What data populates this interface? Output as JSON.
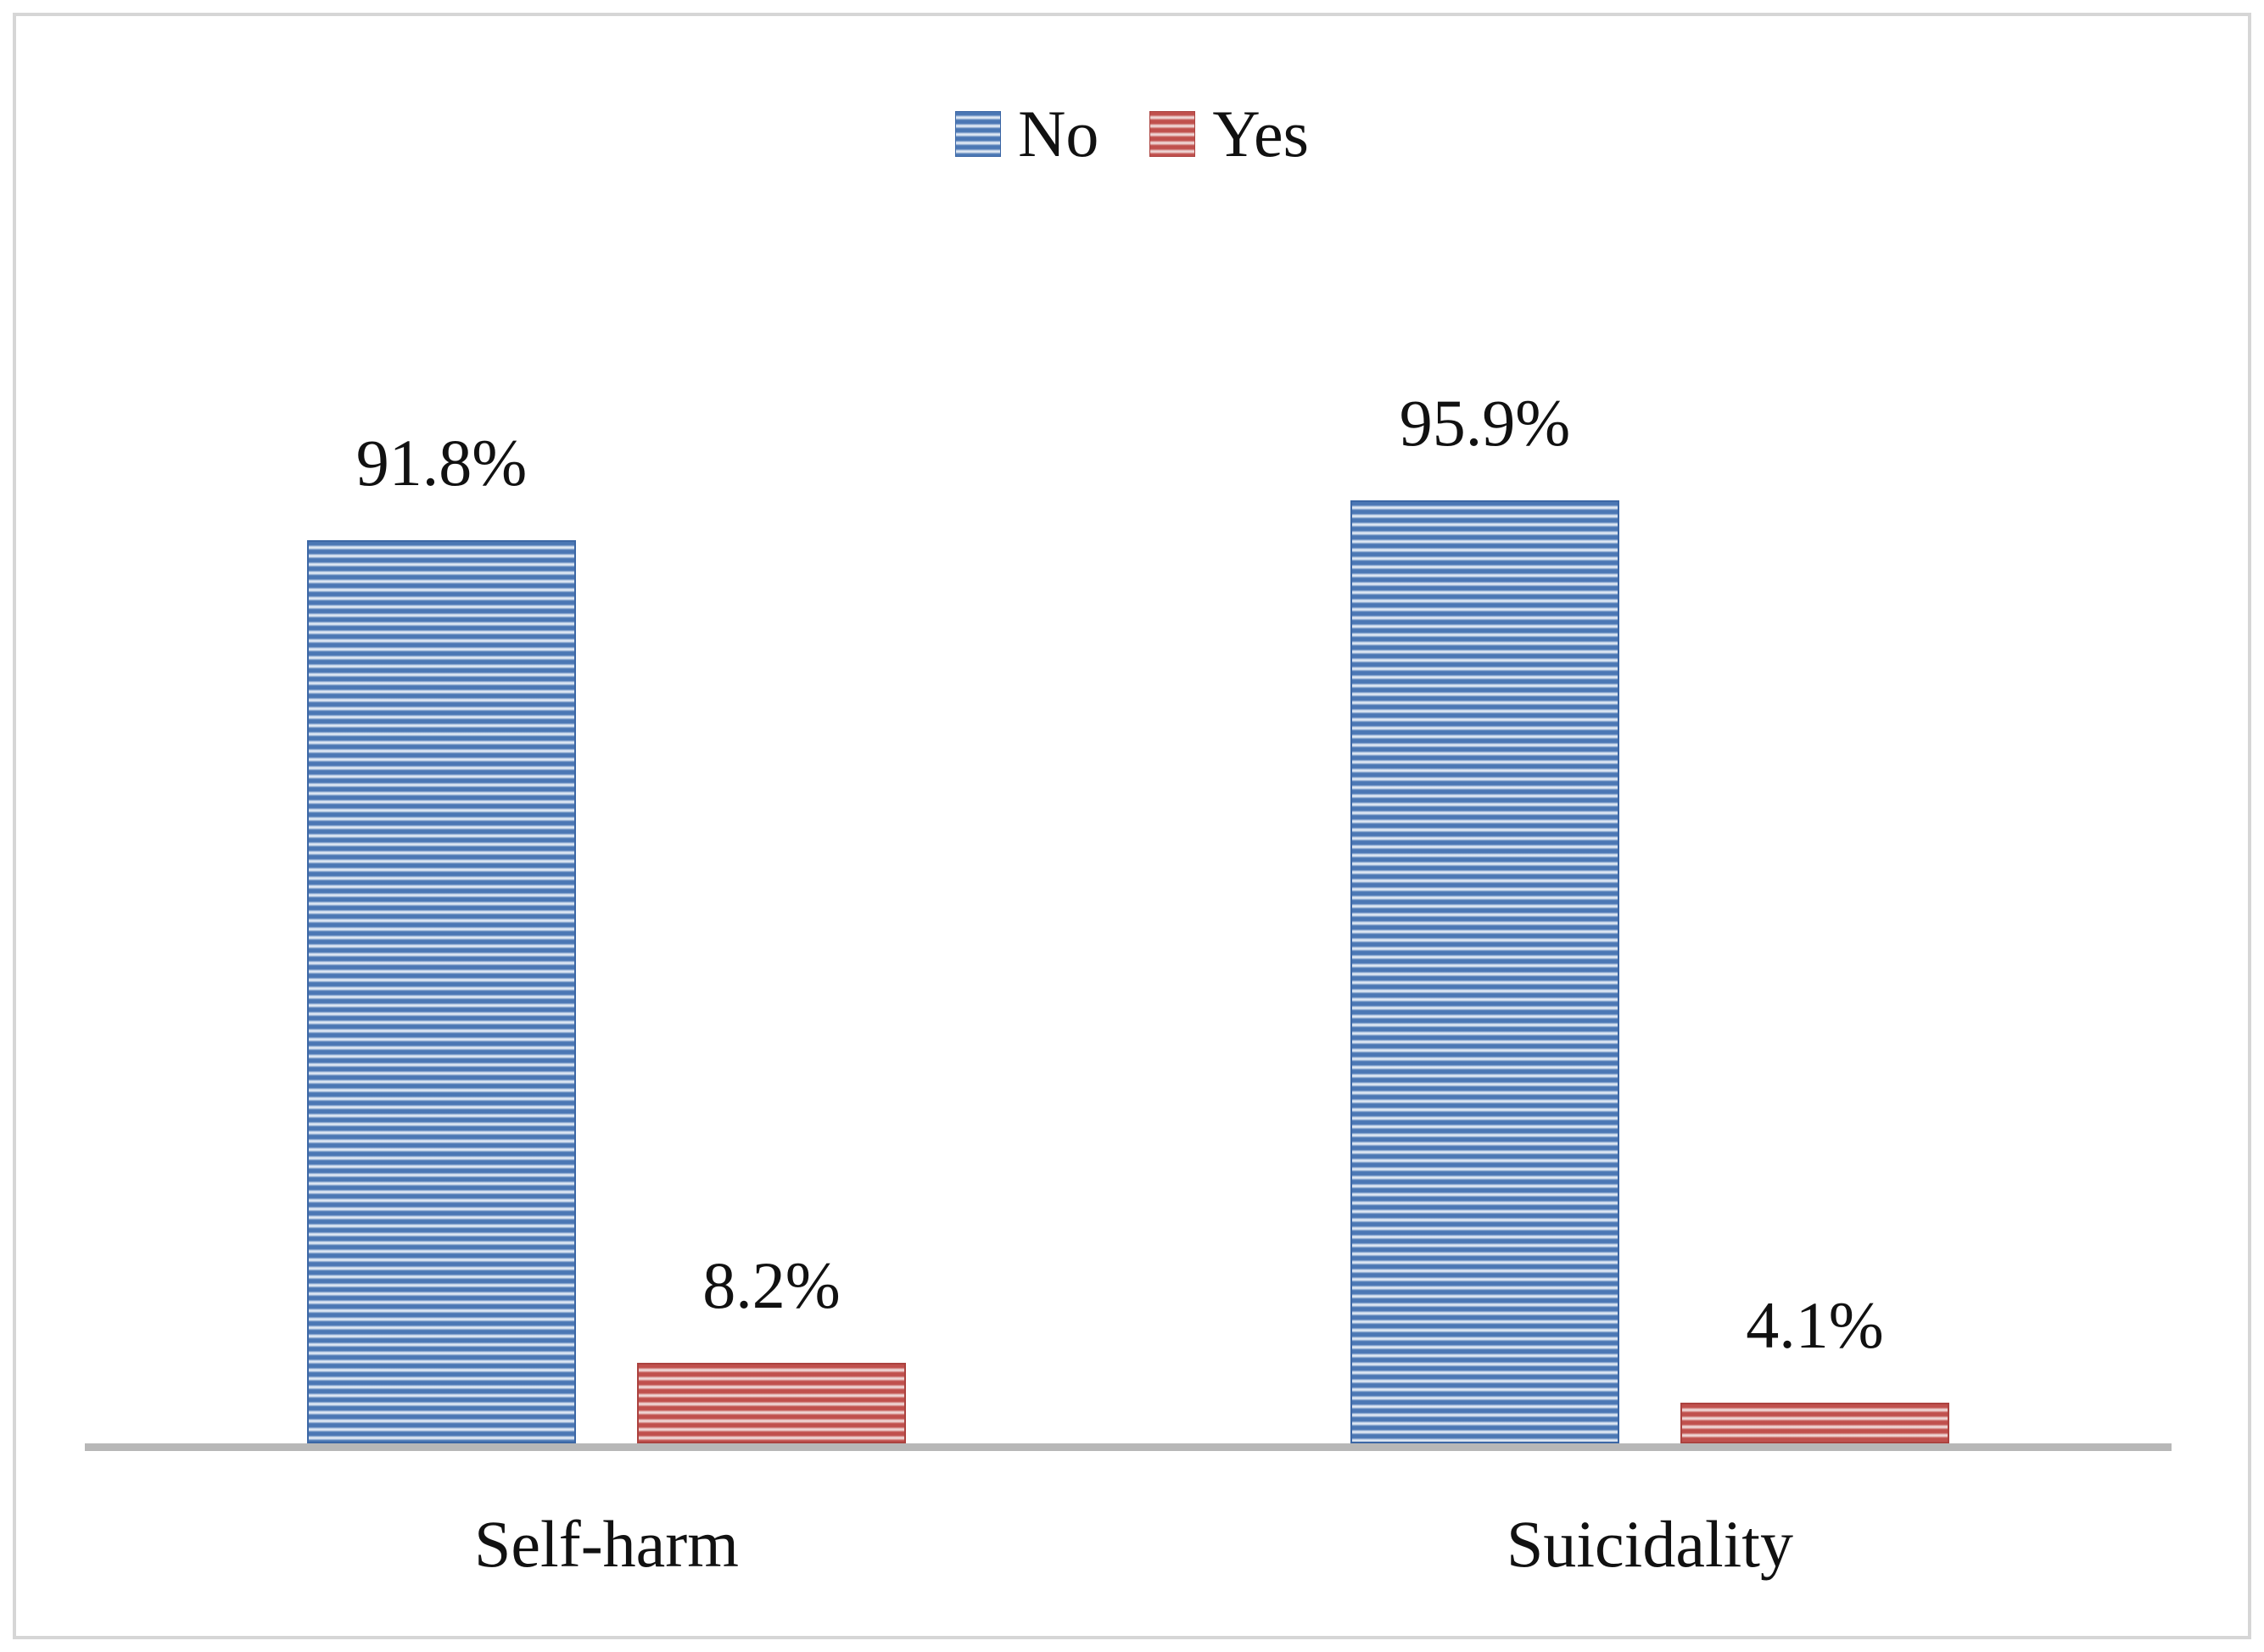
{
  "figure": {
    "background_color": "#ffffff",
    "border_color": "#d6d6d6",
    "text_color": "#111111"
  },
  "chart_data": {
    "type": "bar",
    "title": "",
    "categories": [
      "Self-harm",
      "Suicidality"
    ],
    "series": [
      {
        "name": "No",
        "values": [
          91.8,
          95.9
        ],
        "data_labels": [
          "91.8%",
          "95.9%"
        ],
        "color": "#4b77b4",
        "stripe_light_color": "#dfe8f4",
        "border_color": "#3c67a5"
      },
      {
        "name": "Yes",
        "values": [
          8.2,
          4.1
        ],
        "data_labels": [
          "8.2%",
          "4.1%"
        ],
        "color": "#c0504d",
        "stripe_light_color": "#efd6d5",
        "border_color": "#ab423f"
      }
    ],
    "ylim": [
      0,
      100
    ],
    "value_suffix": "%",
    "grid": false,
    "y_axis_visible": false,
    "legend_position": "top-center",
    "bar_pattern": "horizontal-stripes",
    "axis_line_color": "#b7b7b7"
  }
}
